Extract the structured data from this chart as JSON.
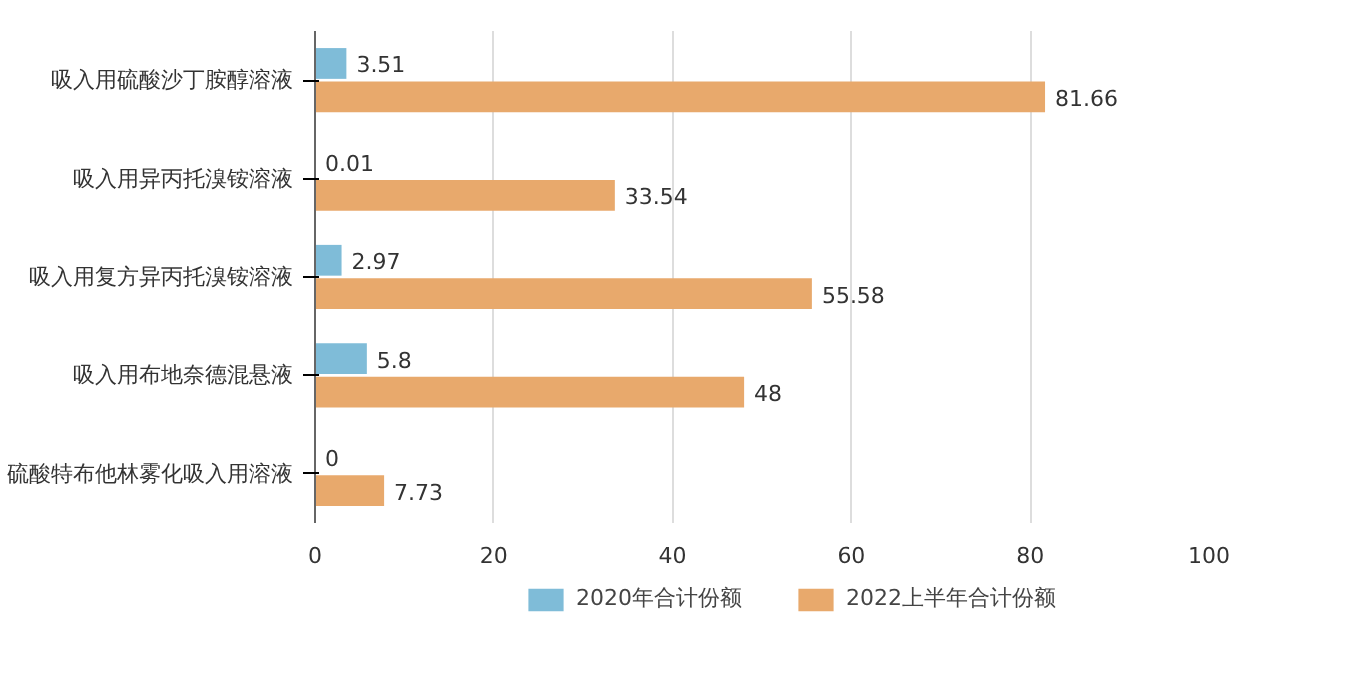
{
  "chart_data": {
    "type": "bar",
    "orientation": "horizontal",
    "categories": [
      "吸入用硫酸沙丁胺醇溶液",
      "吸入用异丙托溴铵溶液",
      "吸入用复方异丙托溴铵溶液",
      "吸入用布地奈德混悬液",
      "硫酸特布他林雾化吸入用溶液"
    ],
    "series": [
      {
        "name": "2020年合计份额",
        "color": "#7fbcd8",
        "values": [
          3.51,
          0.01,
          2.97,
          5.8,
          0
        ]
      },
      {
        "name": "2022上半年合计份额",
        "color": "#e8a96c",
        "values": [
          81.66,
          33.54,
          55.58,
          48,
          7.73
        ]
      }
    ],
    "xlim": [
      0,
      100
    ],
    "xticks": [
      0,
      20,
      40,
      60,
      80,
      100
    ],
    "grid": "x",
    "legend": "bottom",
    "data_labels": true
  }
}
